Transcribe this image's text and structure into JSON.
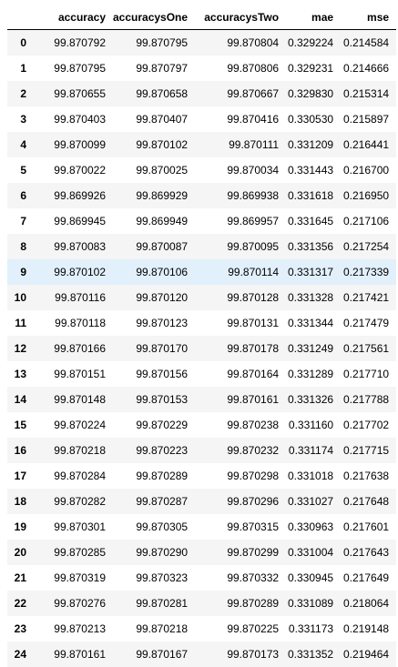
{
  "dataframe": {
    "columns": [
      "",
      "accuracy",
      "accuracysOne",
      "accuracysTwo",
      "mae",
      "mse"
    ],
    "highlight_row_label": "9",
    "rows": [
      [
        "0",
        "99.870792",
        "99.870795",
        "99.870804",
        "0.329224",
        "0.214584"
      ],
      [
        "1",
        "99.870795",
        "99.870797",
        "99.870806",
        "0.329231",
        "0.214666"
      ],
      [
        "2",
        "99.870655",
        "99.870658",
        "99.870667",
        "0.329830",
        "0.215314"
      ],
      [
        "3",
        "99.870403",
        "99.870407",
        "99.870416",
        "0.330530",
        "0.215897"
      ],
      [
        "4",
        "99.870099",
        "99.870102",
        "99.870111",
        "0.331209",
        "0.216441"
      ],
      [
        "5",
        "99.870022",
        "99.870025",
        "99.870034",
        "0.331443",
        "0.216700"
      ],
      [
        "6",
        "99.869926",
        "99.869929",
        "99.869938",
        "0.331618",
        "0.216950"
      ],
      [
        "7",
        "99.869945",
        "99.869949",
        "99.869957",
        "0.331645",
        "0.217106"
      ],
      [
        "8",
        "99.870083",
        "99.870087",
        "99.870095",
        "0.331356",
        "0.217254"
      ],
      [
        "9",
        "99.870102",
        "99.870106",
        "99.870114",
        "0.331317",
        "0.217339"
      ],
      [
        "10",
        "99.870116",
        "99.870120",
        "99.870128",
        "0.331328",
        "0.217421"
      ],
      [
        "11",
        "99.870118",
        "99.870123",
        "99.870131",
        "0.331344",
        "0.217479"
      ],
      [
        "12",
        "99.870166",
        "99.870170",
        "99.870178",
        "0.331249",
        "0.217561"
      ],
      [
        "13",
        "99.870151",
        "99.870156",
        "99.870164",
        "0.331289",
        "0.217710"
      ],
      [
        "14",
        "99.870148",
        "99.870153",
        "99.870161",
        "0.331326",
        "0.217788"
      ],
      [
        "15",
        "99.870224",
        "99.870229",
        "99.870238",
        "0.331160",
        "0.217702"
      ],
      [
        "16",
        "99.870218",
        "99.870223",
        "99.870232",
        "0.331174",
        "0.217715"
      ],
      [
        "17",
        "99.870284",
        "99.870289",
        "99.870298",
        "0.331018",
        "0.217638"
      ],
      [
        "18",
        "99.870282",
        "99.870287",
        "99.870296",
        "0.331027",
        "0.217648"
      ],
      [
        "19",
        "99.870301",
        "99.870305",
        "99.870315",
        "0.330963",
        "0.217601"
      ],
      [
        "20",
        "99.870285",
        "99.870290",
        "99.870299",
        "0.331004",
        "0.217643"
      ],
      [
        "21",
        "99.870319",
        "99.870323",
        "99.870332",
        "0.330945",
        "0.217649"
      ],
      [
        "22",
        "99.870276",
        "99.870281",
        "99.870289",
        "0.331089",
        "0.218064"
      ],
      [
        "23",
        "99.870213",
        "99.870218",
        "99.870225",
        "0.331173",
        "0.219148"
      ],
      [
        "24",
        "99.870161",
        "99.870167",
        "99.870173",
        "0.331352",
        "0.219464"
      ]
    ]
  },
  "colors": {
    "row_odd": "#f5f5f5",
    "row_even": "#ffffff",
    "row_hover": "#e1f0fb",
    "header_rule": "#000000"
  }
}
